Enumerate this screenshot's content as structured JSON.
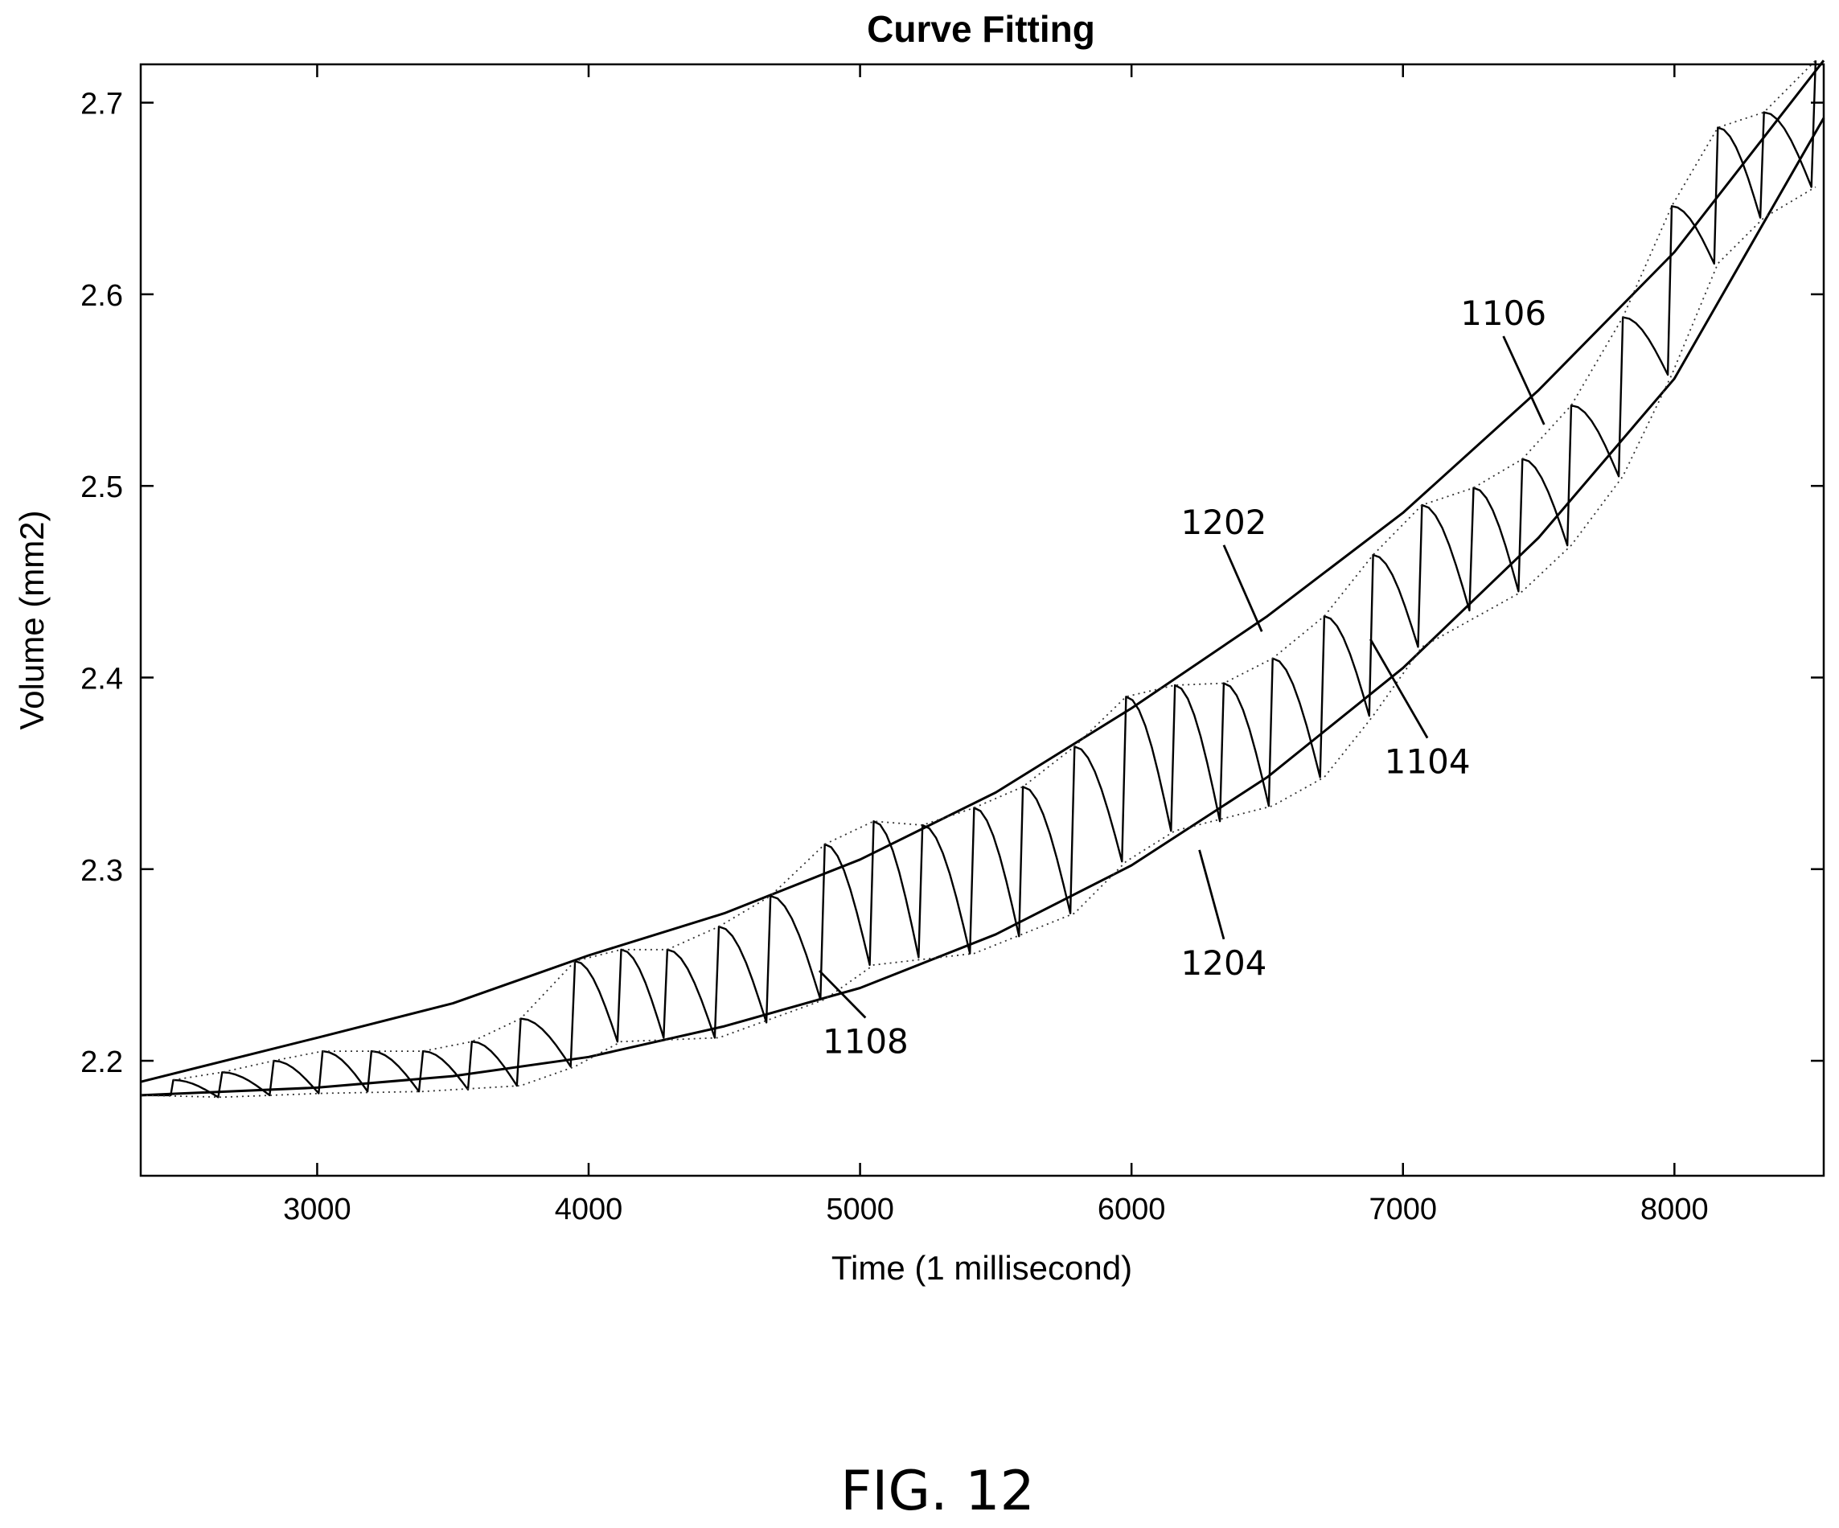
{
  "chart_data": {
    "type": "line",
    "title": "Curve Fitting",
    "xlabel": "Time (1 millisecond)",
    "ylabel": "Volume (mm2)",
    "xlim": [
      2350,
      8550
    ],
    "ylim": [
      2.14,
      2.72
    ],
    "xticks": [
      3000,
      4000,
      5000,
      6000,
      7000,
      8000
    ],
    "xtick_labels": [
      "3000",
      "4000",
      "5000",
      "6000",
      "7000",
      "8000"
    ],
    "yticks": [
      2.2,
      2.3,
      2.4,
      2.5,
      2.6,
      2.7
    ],
    "ytick_labels": [
      "2.2",
      "2.3",
      "2.4",
      "2.5",
      "2.6",
      "2.7"
    ],
    "grid": false,
    "legend": "none",
    "series": [
      {
        "id": "curve-1202",
        "style": "solid",
        "x": [
          2350,
          3000,
          3500,
          4000,
          4500,
          5000,
          5500,
          6000,
          6500,
          7000,
          7500,
          8000,
          8550
        ],
        "y": [
          2.189,
          2.212,
          2.23,
          2.255,
          2.277,
          2.305,
          2.34,
          2.384,
          2.432,
          2.486,
          2.55,
          2.622,
          2.722
        ]
      },
      {
        "id": "curve-1204",
        "style": "solid",
        "x": [
          2350,
          3000,
          3500,
          4000,
          4500,
          5000,
          5500,
          6000,
          6500,
          7000,
          7500,
          8000,
          8550
        ],
        "y": [
          2.182,
          2.186,
          2.192,
          2.202,
          2.218,
          2.238,
          2.266,
          2.302,
          2.348,
          2.405,
          2.473,
          2.556,
          2.692
        ]
      },
      {
        "id": "signal-1104",
        "style": "solid-thin",
        "cycles": [
          {
            "t": 2350,
            "trough": 2.182,
            "peak": 2.182
          },
          {
            "t": 2470,
            "trough": 2.182,
            "peak": 2.19
          },
          {
            "t": 2650,
            "trough": 2.181,
            "peak": 2.194
          },
          {
            "t": 2840,
            "trough": 2.182,
            "peak": 2.2
          },
          {
            "t": 3020,
            "trough": 2.183,
            "peak": 2.205
          },
          {
            "t": 3200,
            "trough": 2.184,
            "peak": 2.205
          },
          {
            "t": 3390,
            "trough": 2.184,
            "peak": 2.205
          },
          {
            "t": 3570,
            "trough": 2.185,
            "peak": 2.21
          },
          {
            "t": 3750,
            "trough": 2.187,
            "peak": 2.222
          },
          {
            "t": 3950,
            "trough": 2.197,
            "peak": 2.252
          },
          {
            "t": 4120,
            "trough": 2.21,
            "peak": 2.258
          },
          {
            "t": 4290,
            "trough": 2.212,
            "peak": 2.258
          },
          {
            "t": 4480,
            "trough": 2.212,
            "peak": 2.27
          },
          {
            "t": 4670,
            "trough": 2.22,
            "peak": 2.286
          },
          {
            "t": 4870,
            "trough": 2.232,
            "peak": 2.313
          },
          {
            "t": 5050,
            "trough": 2.25,
            "peak": 2.325
          },
          {
            "t": 5230,
            "trough": 2.254,
            "peak": 2.323
          },
          {
            "t": 5420,
            "trough": 2.256,
            "peak": 2.332
          },
          {
            "t": 5600,
            "trough": 2.265,
            "peak": 2.343
          },
          {
            "t": 5790,
            "trough": 2.277,
            "peak": 2.364
          },
          {
            "t": 5980,
            "trough": 2.304,
            "peak": 2.39
          },
          {
            "t": 6160,
            "trough": 2.32,
            "peak": 2.396
          },
          {
            "t": 6340,
            "trough": 2.325,
            "peak": 2.397
          },
          {
            "t": 6520,
            "trough": 2.333,
            "peak": 2.41
          },
          {
            "t": 6710,
            "trough": 2.348,
            "peak": 2.432
          },
          {
            "t": 6890,
            "trough": 2.38,
            "peak": 2.464
          },
          {
            "t": 7070,
            "trough": 2.416,
            "peak": 2.49
          },
          {
            "t": 7260,
            "trough": 2.435,
            "peak": 2.499
          },
          {
            "t": 7440,
            "trough": 2.445,
            "peak": 2.514
          },
          {
            "t": 7620,
            "trough": 2.469,
            "peak": 2.542
          },
          {
            "t": 7810,
            "trough": 2.505,
            "peak": 2.588
          },
          {
            "t": 7990,
            "trough": 2.558,
            "peak": 2.646
          },
          {
            "t": 8160,
            "trough": 2.616,
            "peak": 2.687
          },
          {
            "t": 8330,
            "trough": 2.64,
            "peak": 2.695
          },
          {
            "t": 8520,
            "trough": 2.656,
            "peak": 2.722
          }
        ]
      },
      {
        "id": "envelope-1106",
        "style": "dotted",
        "x": [
          2470,
          2650,
          2840,
          3020,
          3200,
          3390,
          3570,
          3750,
          3950,
          4120,
          4290,
          4480,
          4670,
          4870,
          5050,
          5230,
          5420,
          5600,
          5790,
          5980,
          6160,
          6340,
          6520,
          6710,
          6890,
          7070,
          7260,
          7440,
          7620,
          7810,
          7990,
          8160,
          8330,
          8520
        ],
        "y": [
          2.19,
          2.194,
          2.2,
          2.205,
          2.205,
          2.205,
          2.21,
          2.222,
          2.252,
          2.258,
          2.258,
          2.27,
          2.286,
          2.313,
          2.325,
          2.323,
          2.332,
          2.343,
          2.364,
          2.39,
          2.396,
          2.397,
          2.41,
          2.432,
          2.464,
          2.49,
          2.499,
          2.514,
          2.542,
          2.588,
          2.646,
          2.687,
          2.695,
          2.722
        ]
      },
      {
        "id": "envelope-1108",
        "style": "dotted",
        "x": [
          2350,
          2650,
          3020,
          3390,
          3750,
          3950,
          4120,
          4480,
          4870,
          5050,
          5420,
          5790,
          5980,
          6160,
          6520,
          6710,
          6890,
          7070,
          7440,
          7620,
          7810,
          7990,
          8160,
          8330,
          8520
        ],
        "y": [
          2.182,
          2.181,
          2.183,
          2.184,
          2.187,
          2.197,
          2.21,
          2.212,
          2.232,
          2.25,
          2.256,
          2.277,
          2.304,
          2.32,
          2.333,
          2.348,
          2.38,
          2.416,
          2.445,
          2.469,
          2.505,
          2.558,
          2.616,
          2.64,
          2.656
        ]
      }
    ],
    "annotations": [
      {
        "id": "ref-1106",
        "text": "1106",
        "label_x": 7370,
        "label_y": 2.584,
        "target_x": 7520,
        "target_y": 2.532
      },
      {
        "id": "ref-1202",
        "text": "1202",
        "label_x": 6340,
        "label_y": 2.475,
        "target_x": 6480,
        "target_y": 2.424
      },
      {
        "id": "ref-1104",
        "text": "1104",
        "label_x": 7090,
        "label_y": 2.35,
        "target_x": 6880,
        "target_y": 2.42
      },
      {
        "id": "ref-1204",
        "text": "1204",
        "label_x": 6340,
        "label_y": 2.245,
        "target_x": 6250,
        "target_y": 2.31
      },
      {
        "id": "ref-1108",
        "text": "1108",
        "label_x": 5020,
        "label_y": 2.204,
        "target_x": 4850,
        "target_y": 2.247
      }
    ]
  },
  "figure_caption": "FIG. 12"
}
